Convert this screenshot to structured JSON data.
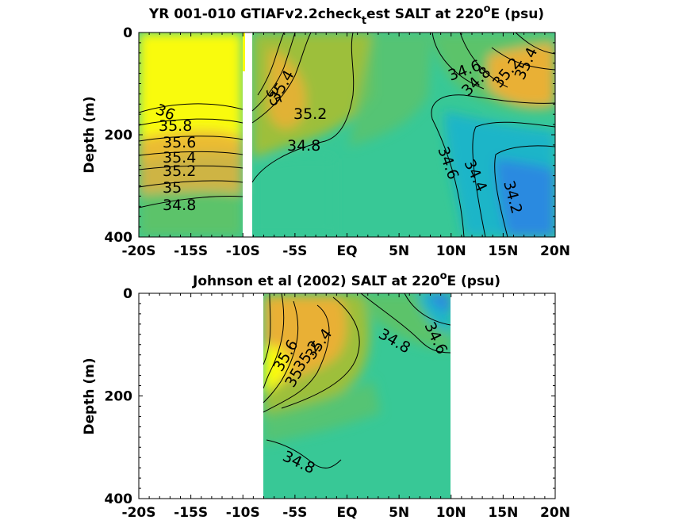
{
  "colors": {
    "yellow": "#f9fb0e",
    "orange": "#e9b036",
    "olive": "#9dbf3a",
    "green": "#5cc36b",
    "teal": "#38c896",
    "cyan": "#1cb5c8",
    "blue": "#2c8ae0",
    "contour": "#000000",
    "axes": "#000000"
  },
  "chart_data": [
    {
      "type": "heatmap",
      "title_main": "YR 001-010 GTIAFv2.2check",
      "title_sub": "t",
      "title_rest": "est SALT at 220",
      "title_sup": "o",
      "title_end": "E (psu)",
      "ylabel": "Depth (m)",
      "xlim": [
        -20,
        20
      ],
      "ylim": [
        0,
        400
      ],
      "y_reversed": true,
      "x_ticks": [
        -20,
        -15,
        -10,
        -5,
        0,
        5,
        10,
        15,
        20
      ],
      "x_tick_labels": [
        "-20S",
        "-15S",
        "-10S",
        "-5S",
        "EQ",
        "5N",
        "10N",
        "15N",
        "20N"
      ],
      "y_ticks": [
        0,
        200,
        400
      ],
      "y_tick_labels": [
        "0",
        "200",
        "400"
      ],
      "gap_x": [
        -10.4,
        -9.7
      ],
      "contour_labels": [
        "36",
        "35.8",
        "35.6",
        "35.4",
        "35.2",
        "35",
        "34.8",
        "35.4",
        "35",
        "35.2",
        "34.8",
        "34.6",
        "34.8",
        "35.2",
        "35.4",
        "34.6",
        "34.4",
        "34.2"
      ],
      "salinity_range_psu": [
        34.2,
        36.0
      ]
    },
    {
      "type": "heatmap",
      "title_main": "Johnson et al (2002) SALT at 220",
      "title_sup": "o",
      "title_end": "E (psu)",
      "ylabel": "Depth (m)",
      "xlim": [
        -20,
        20
      ],
      "ylim": [
        0,
        400
      ],
      "y_reversed": true,
      "data_x_range": [
        -8,
        10
      ],
      "x_ticks": [
        -20,
        -15,
        -10,
        -5,
        0,
        5,
        10,
        15,
        20
      ],
      "x_tick_labels": [
        "-20S",
        "-15S",
        "-10S",
        "-5S",
        "EQ",
        "5N",
        "10N",
        "15N",
        "20N"
      ],
      "y_ticks": [
        0,
        200,
        400
      ],
      "y_tick_labels": [
        "0",
        "200",
        "400"
      ],
      "contour_labels": [
        "35.4",
        "35.2",
        "35",
        "35.6",
        "34.8",
        "34.6",
        "34.8"
      ],
      "salinity_range_psu": [
        34.4,
        35.8
      ]
    }
  ]
}
